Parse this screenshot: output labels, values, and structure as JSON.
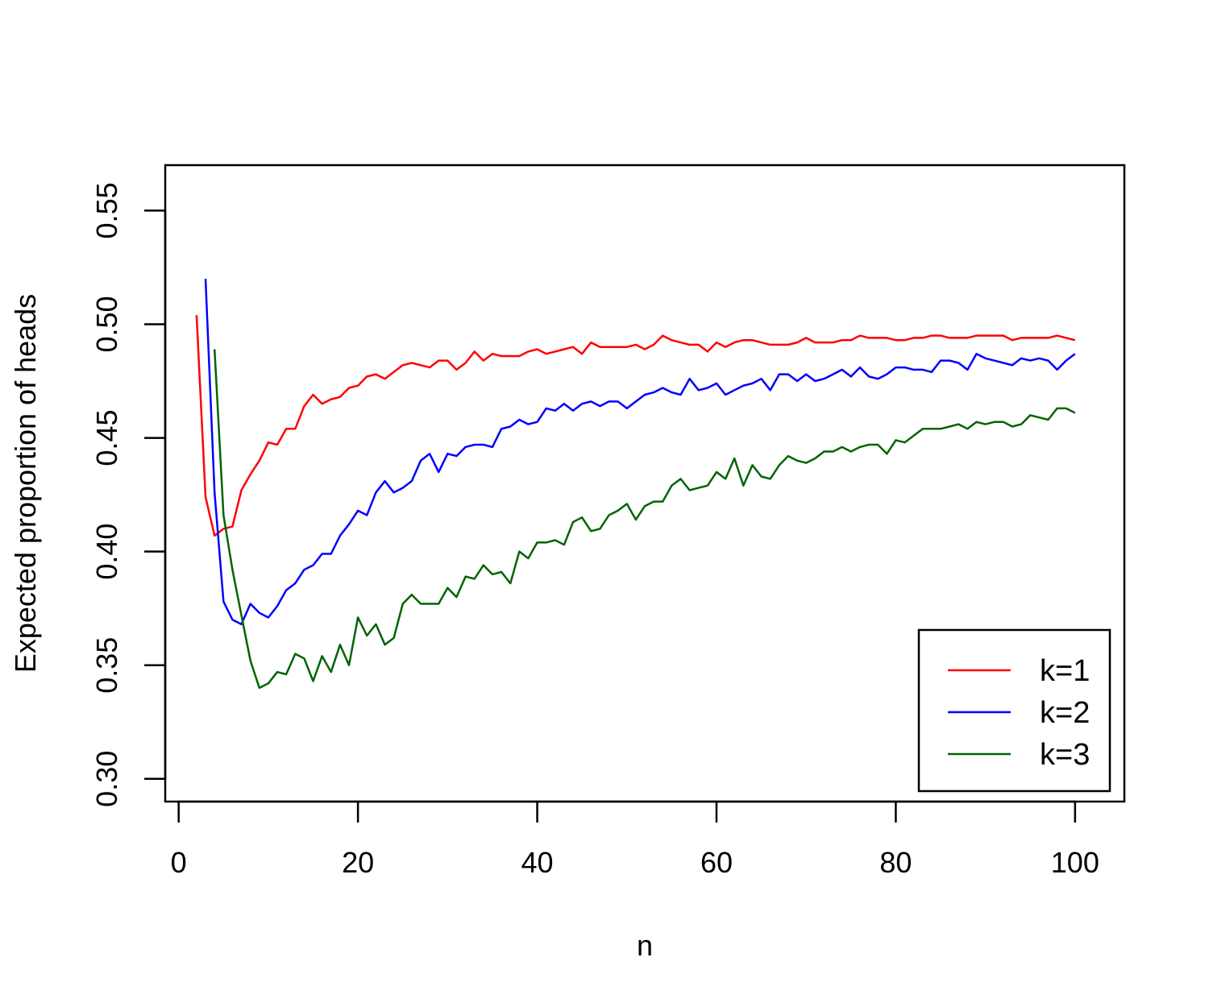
{
  "chart_data": {
    "type": "line",
    "title": "",
    "xlabel": "n",
    "ylabel": "Expected proportion of heads",
    "xlim": [
      -1.5,
      105.5
    ],
    "ylim": [
      0.29,
      0.57
    ],
    "xticks": [
      0,
      20,
      40,
      60,
      80,
      100
    ],
    "xtick_labels": [
      "0",
      "20",
      "40",
      "60",
      "80",
      "100"
    ],
    "yticks": [
      0.3,
      0.35,
      0.4,
      0.45,
      0.5,
      0.55
    ],
    "ytick_labels": [
      "0.30",
      "0.35",
      "0.40",
      "0.45",
      "0.50",
      "0.55"
    ],
    "grid": false,
    "legend": "bottom-right",
    "series": [
      {
        "name": "k=1",
        "color": "#ff0000",
        "x": [
          2,
          3,
          4,
          5,
          6,
          7,
          8,
          9,
          10,
          11,
          12,
          13,
          14,
          15,
          16,
          17,
          18,
          19,
          20,
          21,
          22,
          23,
          24,
          25,
          26,
          27,
          28,
          29,
          30,
          31,
          32,
          33,
          34,
          35,
          36,
          37,
          38,
          39,
          40,
          41,
          42,
          43,
          44,
          45,
          46,
          47,
          48,
          49,
          50,
          51,
          52,
          53,
          54,
          55,
          56,
          57,
          58,
          59,
          60,
          61,
          62,
          63,
          64,
          65,
          66,
          67,
          68,
          69,
          70,
          71,
          72,
          73,
          74,
          75,
          76,
          77,
          78,
          79,
          80,
          81,
          82,
          83,
          84,
          85,
          86,
          87,
          88,
          89,
          90,
          91,
          92,
          93,
          94,
          95,
          96,
          97,
          98,
          99,
          100
        ],
        "values": [
          0.504,
          0.424,
          0.407,
          0.41,
          0.411,
          0.427,
          0.434,
          0.44,
          0.448,
          0.447,
          0.454,
          0.454,
          0.464,
          0.469,
          0.465,
          0.467,
          0.468,
          0.472,
          0.473,
          0.477,
          0.478,
          0.476,
          0.479,
          0.482,
          0.483,
          0.482,
          0.481,
          0.484,
          0.484,
          0.48,
          0.483,
          0.488,
          0.484,
          0.487,
          0.486,
          0.486,
          0.486,
          0.488,
          0.489,
          0.487,
          0.488,
          0.489,
          0.49,
          0.487,
          0.492,
          0.49,
          0.49,
          0.49,
          0.49,
          0.491,
          0.489,
          0.491,
          0.495,
          0.493,
          0.492,
          0.491,
          0.491,
          0.488,
          0.492,
          0.49,
          0.492,
          0.493,
          0.493,
          0.492,
          0.491,
          0.491,
          0.491,
          0.492,
          0.494,
          0.492,
          0.492,
          0.492,
          0.493,
          0.493,
          0.495,
          0.494,
          0.494,
          0.494,
          0.493,
          0.493,
          0.494,
          0.494,
          0.495,
          0.495,
          0.494,
          0.494,
          0.494,
          0.495,
          0.495,
          0.495,
          0.495,
          0.493,
          0.494,
          0.494,
          0.494,
          0.494,
          0.495,
          0.494,
          0.493
        ]
      },
      {
        "name": "k=2",
        "color": "#0000ff",
        "x": [
          3,
          4,
          5,
          6,
          7,
          8,
          9,
          10,
          11,
          12,
          13,
          14,
          15,
          16,
          17,
          18,
          19,
          20,
          21,
          22,
          23,
          24,
          25,
          26,
          27,
          28,
          29,
          30,
          31,
          32,
          33,
          34,
          35,
          36,
          37,
          38,
          39,
          40,
          41,
          42,
          43,
          44,
          45,
          46,
          47,
          48,
          49,
          50,
          51,
          52,
          53,
          54,
          55,
          56,
          57,
          58,
          59,
          60,
          61,
          62,
          63,
          64,
          65,
          66,
          67,
          68,
          69,
          70,
          71,
          72,
          73,
          74,
          75,
          76,
          77,
          78,
          79,
          80,
          81,
          82,
          83,
          84,
          85,
          86,
          87,
          88,
          89,
          90,
          91,
          92,
          93,
          94,
          95,
          96,
          97,
          98,
          99,
          100
        ],
        "values": [
          0.52,
          0.426,
          0.378,
          0.37,
          0.368,
          0.377,
          0.373,
          0.371,
          0.376,
          0.383,
          0.386,
          0.392,
          0.394,
          0.399,
          0.399,
          0.407,
          0.412,
          0.418,
          0.416,
          0.426,
          0.431,
          0.426,
          0.428,
          0.431,
          0.44,
          0.443,
          0.435,
          0.443,
          0.442,
          0.446,
          0.447,
          0.447,
          0.446,
          0.454,
          0.455,
          0.458,
          0.456,
          0.457,
          0.463,
          0.462,
          0.465,
          0.462,
          0.465,
          0.466,
          0.464,
          0.466,
          0.466,
          0.463,
          0.466,
          0.469,
          0.47,
          0.472,
          0.47,
          0.469,
          0.476,
          0.471,
          0.472,
          0.474,
          0.469,
          0.471,
          0.473,
          0.474,
          0.476,
          0.471,
          0.478,
          0.478,
          0.475,
          0.478,
          0.475,
          0.476,
          0.478,
          0.48,
          0.477,
          0.481,
          0.477,
          0.476,
          0.478,
          0.481,
          0.481,
          0.48,
          0.48,
          0.479,
          0.484,
          0.484,
          0.483,
          0.48,
          0.487,
          0.485,
          0.484,
          0.483,
          0.482,
          0.485,
          0.484,
          0.485,
          0.484,
          0.48,
          0.484,
          0.487
        ]
      },
      {
        "name": "k=3",
        "color": "#006400",
        "x": [
          4,
          5,
          6,
          7,
          8,
          9,
          10,
          11,
          12,
          13,
          14,
          15,
          16,
          17,
          18,
          19,
          20,
          21,
          22,
          23,
          24,
          25,
          26,
          27,
          28,
          29,
          30,
          31,
          32,
          33,
          34,
          35,
          36,
          37,
          38,
          39,
          40,
          41,
          42,
          43,
          44,
          45,
          46,
          47,
          48,
          49,
          50,
          51,
          52,
          53,
          54,
          55,
          56,
          57,
          58,
          59,
          60,
          61,
          62,
          63,
          64,
          65,
          66,
          67,
          68,
          69,
          70,
          71,
          72,
          73,
          74,
          75,
          76,
          77,
          78,
          79,
          80,
          81,
          82,
          83,
          84,
          85,
          86,
          87,
          88,
          89,
          90,
          91,
          92,
          93,
          94,
          95,
          96,
          97,
          98,
          99,
          100
        ],
        "values": [
          0.489,
          0.416,
          0.392,
          0.372,
          0.352,
          0.34,
          0.342,
          0.347,
          0.346,
          0.355,
          0.353,
          0.343,
          0.354,
          0.347,
          0.359,
          0.35,
          0.371,
          0.363,
          0.368,
          0.359,
          0.362,
          0.377,
          0.381,
          0.377,
          0.377,
          0.377,
          0.384,
          0.38,
          0.389,
          0.388,
          0.394,
          0.39,
          0.391,
          0.386,
          0.4,
          0.397,
          0.404,
          0.404,
          0.405,
          0.403,
          0.413,
          0.415,
          0.409,
          0.41,
          0.416,
          0.418,
          0.421,
          0.414,
          0.42,
          0.422,
          0.422,
          0.429,
          0.432,
          0.427,
          0.428,
          0.429,
          0.435,
          0.432,
          0.441,
          0.429,
          0.438,
          0.433,
          0.432,
          0.438,
          0.442,
          0.44,
          0.439,
          0.441,
          0.444,
          0.444,
          0.446,
          0.444,
          0.446,
          0.447,
          0.447,
          0.443,
          0.449,
          0.448,
          0.451,
          0.454,
          0.454,
          0.454,
          0.455,
          0.456,
          0.454,
          0.457,
          0.456,
          0.457,
          0.457,
          0.455,
          0.456,
          0.46,
          0.459,
          0.458,
          0.463,
          0.463,
          0.461
        ]
      }
    ]
  }
}
